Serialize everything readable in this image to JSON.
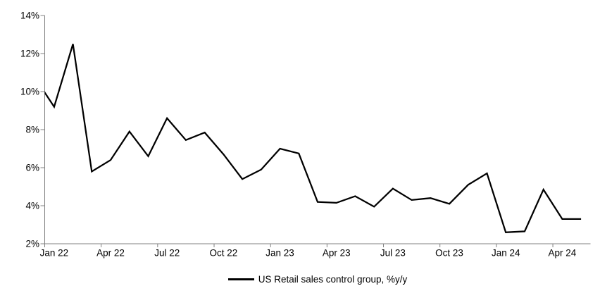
{
  "chart_data": {
    "type": "line",
    "title": "",
    "legend_position": "bottom-center",
    "grid": false,
    "background_color": "#ffffff",
    "axis_color": "#808080",
    "text_color": "#000000",
    "ylim": [
      2,
      14
    ],
    "ytick_step": 2,
    "ytick_labels": [
      "2%",
      "4%",
      "6%",
      "8%",
      "10%",
      "12%",
      "14%"
    ],
    "xtick_labels": [
      "Jan 22",
      "Apr 22",
      "Jul 22",
      "Oct 22",
      "Jan 23",
      "Apr 23",
      "Jul 23",
      "Oct 23",
      "Jan 24",
      "Apr 24"
    ],
    "x_categories": [
      "Jan 22",
      "Feb 22",
      "Mar 22",
      "Apr 22",
      "May 22",
      "Jun 22",
      "Jul 22",
      "Aug 22",
      "Sep 22",
      "Oct 22",
      "Nov 22",
      "Dec 22",
      "Jan 23",
      "Feb 23",
      "Mar 23",
      "Apr 23",
      "May 23",
      "Jun 23",
      "Jul 23",
      "Aug 23",
      "Sep 23",
      "Oct 23",
      "Nov 23",
      "Dec 23",
      "Jan 24",
      "Feb 24",
      "Mar 24",
      "Apr 24",
      "May 24"
    ],
    "pre_point": {
      "label": "Dec 21",
      "value": 10.7,
      "note": "entry segment clipped at left plot edge"
    },
    "series": [
      {
        "name": "US Retail sales control group, %y/y",
        "color": "#000000",
        "values": [
          9.2,
          12.5,
          5.8,
          6.4,
          7.9,
          6.6,
          8.6,
          7.45,
          7.85,
          6.7,
          5.4,
          5.9,
          7.0,
          6.75,
          4.2,
          4.15,
          4.5,
          3.95,
          4.9,
          4.3,
          4.4,
          4.1,
          5.1,
          5.7,
          2.6,
          2.65,
          4.85,
          3.3,
          3.3
        ]
      }
    ]
  }
}
